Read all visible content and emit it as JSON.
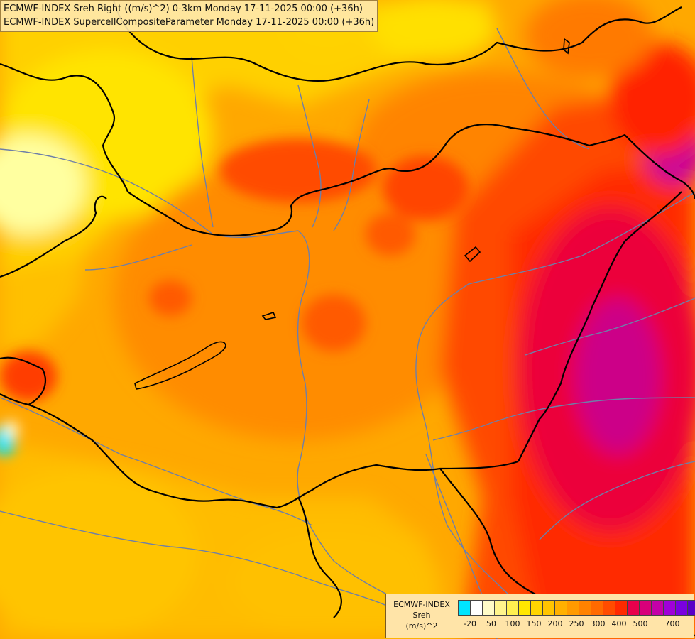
{
  "title": {
    "line1": "ECMWF-INDEX Sreh Right ((m/s)^2) 0-3km Monday 17-11-2025 00:00 (+36h)",
    "line2": "ECMWF-INDEX SupercellCompositeParameter Monday 17-11-2025 00:00 (+36h)"
  },
  "legend": {
    "line1": "ECMWF-INDEX",
    "line2": "Sreh",
    "line3": "(m/s)^2",
    "swatch_colors": [
      "#00e5ff",
      "#ffffff",
      "#fffbc8",
      "#fff48c",
      "#fff050",
      "#ffe600",
      "#ffd500",
      "#ffc400",
      "#ffb000",
      "#ff9a00",
      "#ff8200",
      "#ff6a00",
      "#ff4c00",
      "#ff2a00",
      "#e8004c",
      "#d8007a",
      "#c400a8",
      "#a000d8",
      "#7a00e0",
      "#5a00c8",
      "#3a00a8",
      "#10008a"
    ],
    "tick_labels": [
      "-20",
      "50",
      "100",
      "150",
      "200",
      "250",
      "300",
      "400",
      "500",
      "700"
    ]
  },
  "colors": {
    "yellow_light": "#ffffb0",
    "yellow": "#ffe800",
    "gold": "#ffc400",
    "orange": "#ff9000",
    "orange_dark": "#ff6a00",
    "red": "#ff3000",
    "crimson": "#e8003c",
    "magenta": "#c8008c",
    "cyan": "#00e5ff"
  }
}
